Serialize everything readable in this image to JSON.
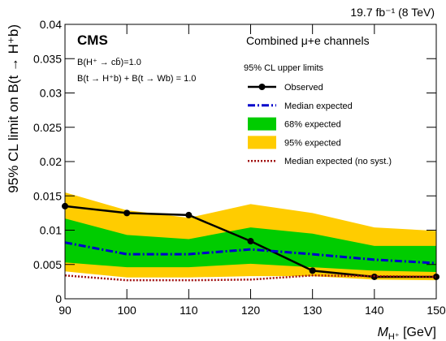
{
  "chart_data": {
    "type": "limit",
    "lumi": "19.7 fb⁻¹ (8 TeV)",
    "experiment": "CMS",
    "annotations": [
      "B(H⁺ → cb̄)=1.0",
      "B(t → H⁺b) + B(t → Wb) = 1.0"
    ],
    "channel": "Combined μ+e channels",
    "legend_title": "95% CL upper limits",
    "y_label": "95% CL limit on B(t → H⁺b)",
    "x_label": {
      "symbol": "M",
      "subscript": "H⁺",
      "unit": " [GeV]"
    },
    "x": [
      90,
      100,
      110,
      120,
      130,
      140,
      150
    ],
    "xlim": [
      90,
      150
    ],
    "xticks": [
      90,
      100,
      110,
      120,
      130,
      140,
      150
    ],
    "ylim": [
      0,
      0.04
    ],
    "yticks": [
      0,
      0.005,
      0.01,
      0.015,
      0.02,
      0.025,
      0.03,
      0.035,
      0.04
    ],
    "bands": [
      {
        "name": "95% expected",
        "color": "#ffcc00",
        "upper": [
          0.0155,
          0.0129,
          0.0118,
          0.0138,
          0.0125,
          0.0104,
          0.0099
        ],
        "lower": [
          0.004,
          0.0031,
          0.0031,
          0.0033,
          0.0033,
          0.0028,
          0.0027
        ]
      },
      {
        "name": "68% expected",
        "color": "#00cc00",
        "upper": [
          0.0117,
          0.0093,
          0.0087,
          0.0104,
          0.0095,
          0.0077,
          0.0077
        ],
        "lower": [
          0.0053,
          0.0046,
          0.0046,
          0.0051,
          0.0046,
          0.0041,
          0.0039
        ]
      }
    ],
    "series": [
      {
        "name": "Observed",
        "color": "#000000",
        "style": "solid-marker",
        "values": [
          0.0135,
          0.0125,
          0.0122,
          0.0084,
          0.0041,
          0.0032,
          0.0032
        ]
      },
      {
        "name": "Median expected",
        "color": "#0000cc",
        "style": "dashdot",
        "values": [
          0.0082,
          0.0065,
          0.0065,
          0.0072,
          0.0065,
          0.0057,
          0.0052
        ]
      },
      {
        "name": "Median expected (no syst.)",
        "color": "#a01010",
        "style": "dotted",
        "values": [
          0.0034,
          0.0027,
          0.0027,
          0.0028,
          0.0034,
          0.0033,
          0.0032
        ]
      }
    ]
  }
}
